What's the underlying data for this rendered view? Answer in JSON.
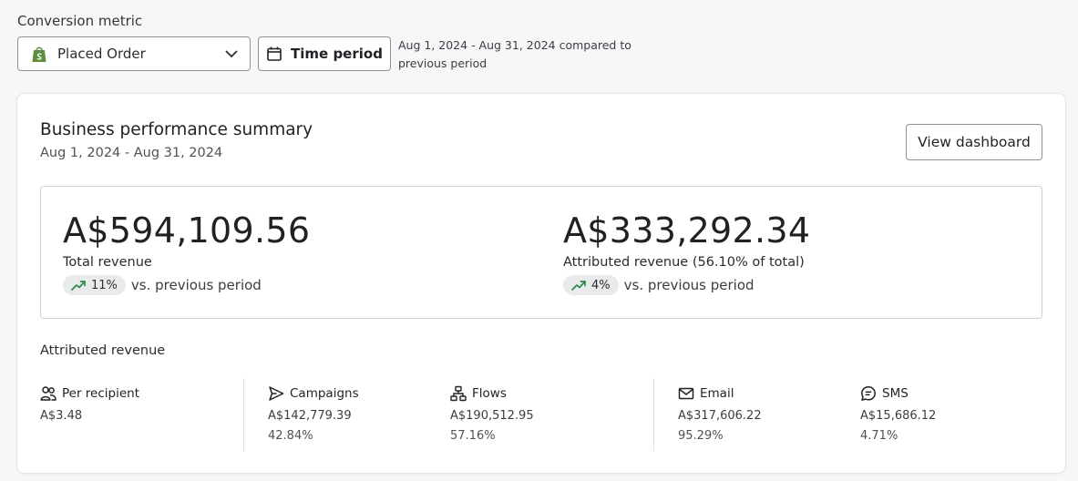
{
  "conversion_metric": {
    "label": "Conversion metric",
    "selected": "Placed Order"
  },
  "time_period": {
    "button_label": "Time period",
    "range_text": "Aug 1, 2024 - Aug 31, 2024 compared to previous period"
  },
  "card": {
    "title": "Business performance summary",
    "date_range": "Aug 1, 2024 - Aug 31, 2024",
    "view_button": "View dashboard"
  },
  "summary": {
    "total": {
      "value": "A$594,109.56",
      "label": "Total revenue",
      "change": "11%",
      "change_suffix": "vs. previous period"
    },
    "attributed": {
      "value": "A$333,292.34",
      "label": "Attributed revenue (56.10% of total)",
      "change": "4%",
      "change_suffix": "vs. previous period"
    }
  },
  "attributed_revenue": {
    "title": "Attributed revenue",
    "columns": [
      {
        "icon": "people-icon",
        "label": "Per recipient",
        "value": "A$3.48",
        "pct": ""
      },
      {
        "icon": "send-icon",
        "label": "Campaigns",
        "value": "A$142,779.39",
        "pct": "42.84%"
      },
      {
        "icon": "flows-icon",
        "label": "Flows",
        "value": "A$190,512.95",
        "pct": "57.16%"
      },
      {
        "icon": "email-icon",
        "label": "Email",
        "value": "A$317,606.22",
        "pct": "95.29%"
      },
      {
        "icon": "sms-icon",
        "label": "SMS",
        "value": "A$15,686.12",
        "pct": "4.71%"
      }
    ]
  },
  "colors": {
    "trend_green": "#2e8a4a",
    "shopify_green": "#5e8e3e",
    "pill_bg": "#e9eaec"
  }
}
